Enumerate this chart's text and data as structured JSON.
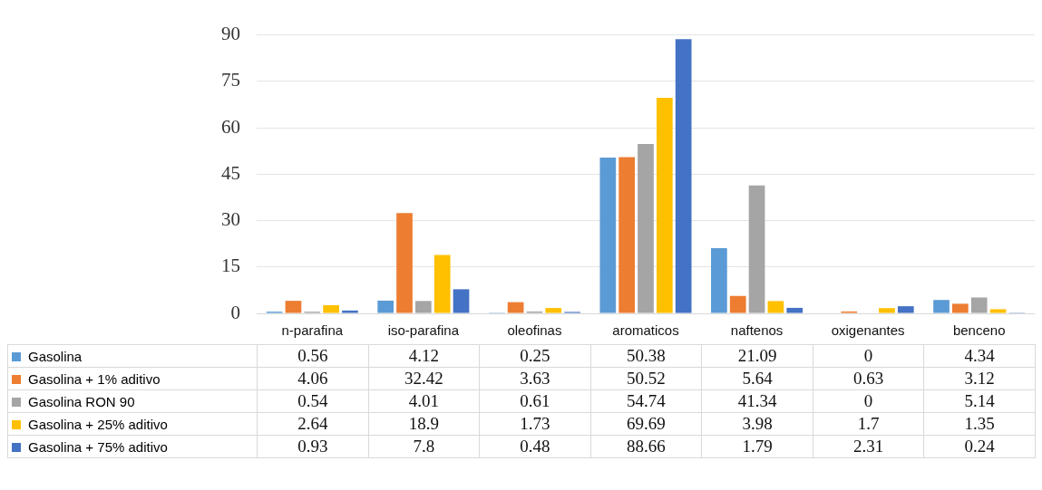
{
  "chart_data": {
    "type": "bar",
    "categories": [
      "n-parafina",
      "iso-parafina",
      "oleofinas",
      "aromaticos",
      "naftenos",
      "oxigenantes",
      "benceno"
    ],
    "series": [
      {
        "name": "Gasolina",
        "color": "#5b9bd5",
        "values": [
          0.56,
          4.12,
          0.25,
          50.38,
          21.09,
          0,
          4.34
        ]
      },
      {
        "name": "Gasolina + 1% aditivo",
        "color": "#ed7d31",
        "values": [
          4.06,
          32.42,
          3.63,
          50.52,
          5.64,
          0.63,
          3.12
        ]
      },
      {
        "name": "Gasolina RON 90",
        "color": "#a5a5a5",
        "values": [
          0.54,
          4.01,
          0.61,
          54.74,
          41.34,
          0,
          5.14
        ]
      },
      {
        "name": "Gasolina + 25% aditivo",
        "color": "#ffc000",
        "values": [
          2.64,
          18.9,
          1.73,
          69.69,
          3.98,
          1.7,
          1.35
        ]
      },
      {
        "name": "Gasolina + 75% aditivo",
        "color": "#4472c4",
        "values": [
          0.93,
          7.8,
          0.48,
          88.66,
          1.79,
          2.31,
          0.24
        ]
      }
    ],
    "ylim": [
      0,
      90
    ],
    "yticks": [
      0,
      15,
      30,
      45,
      60,
      75,
      90
    ],
    "grid": "y",
    "legend": "bottom left",
    "data_labels": true
  }
}
